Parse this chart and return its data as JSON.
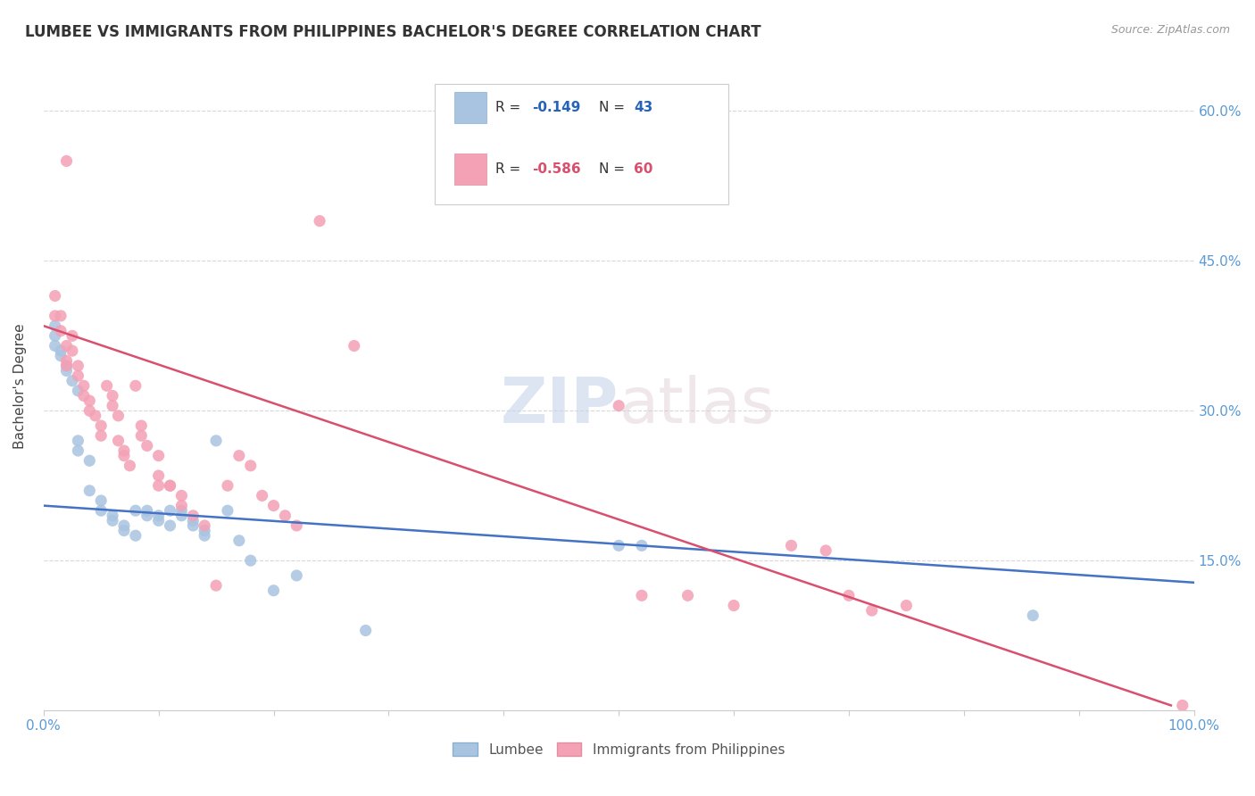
{
  "title": "LUMBEE VS IMMIGRANTS FROM PHILIPPINES BACHELOR'S DEGREE CORRELATION CHART",
  "source": "Source: ZipAtlas.com",
  "ylabel": "Bachelor's Degree",
  "xlim": [
    0,
    1.0
  ],
  "ylim": [
    0,
    0.65
  ],
  "grid_color": "#d8d8d8",
  "background_color": "#ffffff",
  "lumbee_color": "#a8c4e0",
  "philippines_color": "#f4a0b5",
  "lumbee_line_color": "#4472c4",
  "philippines_line_color": "#d94f6e",
  "lumbee_R": -0.149,
  "lumbee_N": 43,
  "philippines_R": -0.586,
  "philippines_N": 60,
  "lumbee_line": [
    [
      0.0,
      0.205
    ],
    [
      1.0,
      0.128
    ]
  ],
  "philippines_line": [
    [
      0.0,
      0.385
    ],
    [
      0.98,
      0.005
    ]
  ],
  "lumbee_points": [
    [
      0.01,
      0.385
    ],
    [
      0.01,
      0.375
    ],
    [
      0.01,
      0.365
    ],
    [
      0.015,
      0.36
    ],
    [
      0.015,
      0.355
    ],
    [
      0.02,
      0.345
    ],
    [
      0.02,
      0.34
    ],
    [
      0.025,
      0.33
    ],
    [
      0.03,
      0.32
    ],
    [
      0.03,
      0.27
    ],
    [
      0.03,
      0.26
    ],
    [
      0.04,
      0.25
    ],
    [
      0.04,
      0.22
    ],
    [
      0.05,
      0.21
    ],
    [
      0.05,
      0.2
    ],
    [
      0.06,
      0.195
    ],
    [
      0.06,
      0.19
    ],
    [
      0.07,
      0.185
    ],
    [
      0.07,
      0.18
    ],
    [
      0.08,
      0.175
    ],
    [
      0.08,
      0.2
    ],
    [
      0.09,
      0.195
    ],
    [
      0.09,
      0.2
    ],
    [
      0.1,
      0.195
    ],
    [
      0.1,
      0.19
    ],
    [
      0.11,
      0.185
    ],
    [
      0.11,
      0.2
    ],
    [
      0.12,
      0.2
    ],
    [
      0.12,
      0.195
    ],
    [
      0.13,
      0.19
    ],
    [
      0.13,
      0.185
    ],
    [
      0.14,
      0.18
    ],
    [
      0.14,
      0.175
    ],
    [
      0.15,
      0.27
    ],
    [
      0.16,
      0.2
    ],
    [
      0.17,
      0.17
    ],
    [
      0.18,
      0.15
    ],
    [
      0.2,
      0.12
    ],
    [
      0.22,
      0.135
    ],
    [
      0.28,
      0.08
    ],
    [
      0.5,
      0.165
    ],
    [
      0.52,
      0.165
    ],
    [
      0.86,
      0.095
    ]
  ],
  "philippines_points": [
    [
      0.01,
      0.395
    ],
    [
      0.01,
      0.415
    ],
    [
      0.015,
      0.395
    ],
    [
      0.015,
      0.38
    ],
    [
      0.02,
      0.365
    ],
    [
      0.02,
      0.35
    ],
    [
      0.02,
      0.345
    ],
    [
      0.02,
      0.55
    ],
    [
      0.025,
      0.375
    ],
    [
      0.025,
      0.36
    ],
    [
      0.03,
      0.345
    ],
    [
      0.03,
      0.335
    ],
    [
      0.035,
      0.325
    ],
    [
      0.035,
      0.315
    ],
    [
      0.04,
      0.31
    ],
    [
      0.04,
      0.3
    ],
    [
      0.045,
      0.295
    ],
    [
      0.05,
      0.285
    ],
    [
      0.05,
      0.275
    ],
    [
      0.055,
      0.325
    ],
    [
      0.06,
      0.315
    ],
    [
      0.06,
      0.305
    ],
    [
      0.065,
      0.295
    ],
    [
      0.065,
      0.27
    ],
    [
      0.07,
      0.26
    ],
    [
      0.07,
      0.255
    ],
    [
      0.075,
      0.245
    ],
    [
      0.08,
      0.325
    ],
    [
      0.085,
      0.285
    ],
    [
      0.085,
      0.275
    ],
    [
      0.09,
      0.265
    ],
    [
      0.1,
      0.255
    ],
    [
      0.1,
      0.235
    ],
    [
      0.1,
      0.225
    ],
    [
      0.11,
      0.225
    ],
    [
      0.11,
      0.225
    ],
    [
      0.12,
      0.215
    ],
    [
      0.12,
      0.205
    ],
    [
      0.13,
      0.195
    ],
    [
      0.14,
      0.185
    ],
    [
      0.15,
      0.125
    ],
    [
      0.16,
      0.225
    ],
    [
      0.17,
      0.255
    ],
    [
      0.18,
      0.245
    ],
    [
      0.19,
      0.215
    ],
    [
      0.2,
      0.205
    ],
    [
      0.21,
      0.195
    ],
    [
      0.22,
      0.185
    ],
    [
      0.24,
      0.49
    ],
    [
      0.27,
      0.365
    ],
    [
      0.5,
      0.305
    ],
    [
      0.52,
      0.115
    ],
    [
      0.56,
      0.115
    ],
    [
      0.6,
      0.105
    ],
    [
      0.65,
      0.165
    ],
    [
      0.68,
      0.16
    ],
    [
      0.7,
      0.115
    ],
    [
      0.72,
      0.1
    ],
    [
      0.75,
      0.105
    ],
    [
      0.99,
      0.005
    ]
  ]
}
